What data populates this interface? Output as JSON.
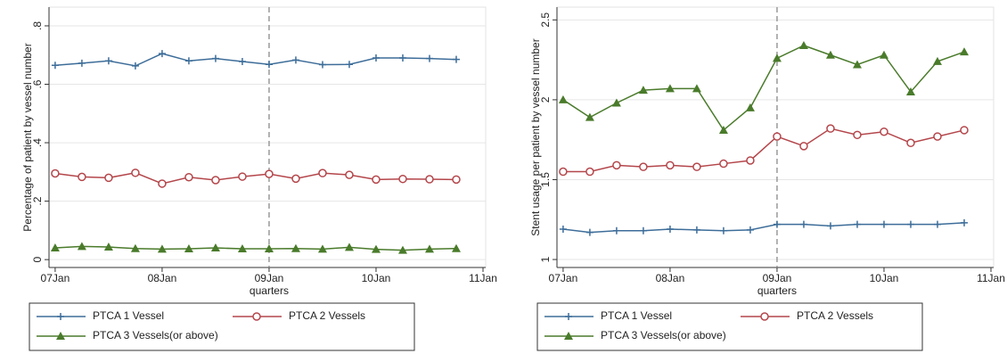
{
  "chart_data": [
    {
      "type": "line",
      "x_label": "quarters",
      "y_label": "Percentage of patient by vessel number",
      "x": [
        0,
        1,
        2,
        3,
        4,
        5,
        6,
        7,
        8,
        9,
        10,
        11,
        12,
        13,
        14,
        15
      ],
      "xlim": [
        -0.23,
        16.1
      ],
      "xticks": [
        {
          "value": 0,
          "label": "07Jan"
        },
        {
          "value": 4,
          "label": "08Jan"
        },
        {
          "value": 8,
          "label": "09Jan"
        },
        {
          "value": 12,
          "label": "10Jan"
        },
        {
          "value": 16,
          "label": "11Jan"
        }
      ],
      "ylim": [
        -0.027,
        0.864
      ],
      "yticks": [
        0,
        {
          "value": 0.2,
          "label": ".2"
        },
        {
          "value": 0.4,
          "label": ".4"
        },
        {
          "value": 0.6,
          "label": ".6"
        },
        {
          "value": 0.8,
          "label": ".8"
        }
      ],
      "grid": true,
      "reference_line": 8,
      "legend": "bottom",
      "series": [
        {
          "name": "PTCA 1 Vessel",
          "color": "#3d6d99",
          "marker": "plus",
          "values": [
            0.665,
            0.672,
            0.68,
            0.663,
            0.705,
            0.68,
            0.688,
            0.678,
            0.668,
            0.683,
            0.667,
            0.668,
            0.69,
            0.69,
            0.688,
            0.685
          ]
        },
        {
          "name": "PTCA 2 Vessels",
          "color": "#b4464b",
          "marker": "circle",
          "values": [
            0.295,
            0.283,
            0.28,
            0.297,
            0.26,
            0.282,
            0.272,
            0.284,
            0.293,
            0.277,
            0.296,
            0.29,
            0.274,
            0.276,
            0.275,
            0.274
          ]
        },
        {
          "name": "PTCA 3 Vessels(or above)",
          "color": "#4a7b2b",
          "marker": "triangle",
          "values": [
            0.04,
            0.045,
            0.043,
            0.038,
            0.036,
            0.037,
            0.04,
            0.037,
            0.037,
            0.038,
            0.036,
            0.042,
            0.035,
            0.032,
            0.036,
            0.038
          ]
        }
      ]
    },
    {
      "type": "line",
      "x_label": "quarters",
      "y_label": "Stent usage per patient by vessel number",
      "x": [
        0,
        1,
        2,
        3,
        4,
        5,
        6,
        7,
        8,
        9,
        10,
        11,
        12,
        13,
        14,
        15
      ],
      "xlim": [
        -0.23,
        16.1
      ],
      "xticks": [
        {
          "value": 0,
          "label": "07Jan"
        },
        {
          "value": 4,
          "label": "08Jan"
        },
        {
          "value": 8,
          "label": "09Jan"
        },
        {
          "value": 12,
          "label": "10Jan"
        },
        {
          "value": 16,
          "label": "11Jan"
        }
      ],
      "ylim": [
        0.95,
        2.58
      ],
      "yticks": [
        1,
        1.5,
        2,
        2.5
      ],
      "grid": true,
      "reference_line": 8,
      "legend": "bottom",
      "series": [
        {
          "name": "PTCA 1 Vessel",
          "color": "#3d6d99",
          "marker": "plus",
          "values": [
            1.19,
            1.17,
            1.18,
            1.18,
            1.19,
            1.185,
            1.18,
            1.185,
            1.22,
            1.22,
            1.21,
            1.22,
            1.22,
            1.22,
            1.22,
            1.23
          ]
        },
        {
          "name": "PTCA 2 Vessels",
          "color": "#b4464b",
          "marker": "circle",
          "values": [
            1.55,
            1.55,
            1.59,
            1.58,
            1.59,
            1.58,
            1.6,
            1.62,
            1.77,
            1.71,
            1.82,
            1.78,
            1.8,
            1.73,
            1.77,
            1.81
          ]
        },
        {
          "name": "PTCA 3 Vessels(or above)",
          "color": "#4a7b2b",
          "marker": "triangle",
          "values": [
            2.0,
            1.89,
            1.98,
            2.06,
            2.07,
            2.07,
            1.81,
            1.95,
            2.26,
            2.34,
            2.28,
            2.22,
            2.28,
            2.05,
            2.24,
            2.3
          ]
        }
      ]
    }
  ]
}
